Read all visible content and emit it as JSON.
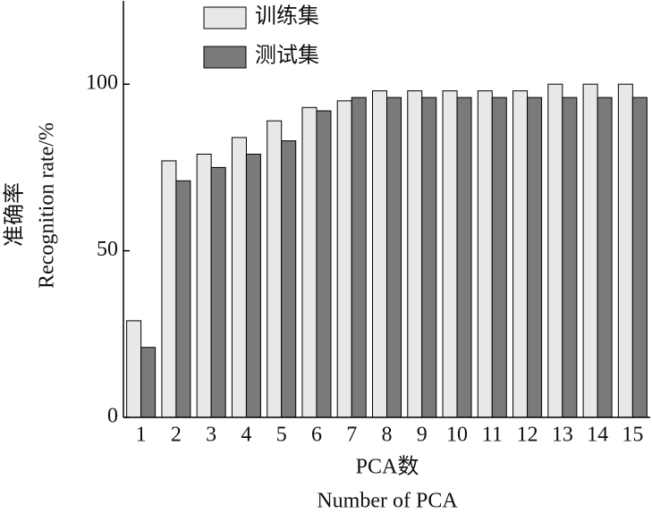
{
  "chart_data": {
    "type": "bar",
    "categories": [
      "1",
      "2",
      "3",
      "4",
      "5",
      "6",
      "7",
      "8",
      "9",
      "10",
      "11",
      "12",
      "13",
      "14",
      "15"
    ],
    "series": [
      {
        "name": "训练集",
        "color": "#e8e8e8",
        "values": [
          29,
          77,
          79,
          84,
          89,
          93,
          95,
          98,
          98,
          98,
          98,
          98,
          100,
          100,
          100
        ]
      },
      {
        "name": "测试集",
        "color": "#7a7a7a",
        "values": [
          21,
          71,
          75,
          79,
          83,
          92,
          96,
          96,
          96,
          96,
          96,
          96,
          96,
          96,
          96
        ]
      }
    ],
    "ylim": [
      0,
      125
    ],
    "yticks": [
      0,
      50,
      100
    ],
    "ylabel": [
      "准确率",
      "Recognition rate/%"
    ],
    "xlabel": [
      "PCA数",
      "Number of PCA"
    ],
    "legend": "upper left"
  }
}
